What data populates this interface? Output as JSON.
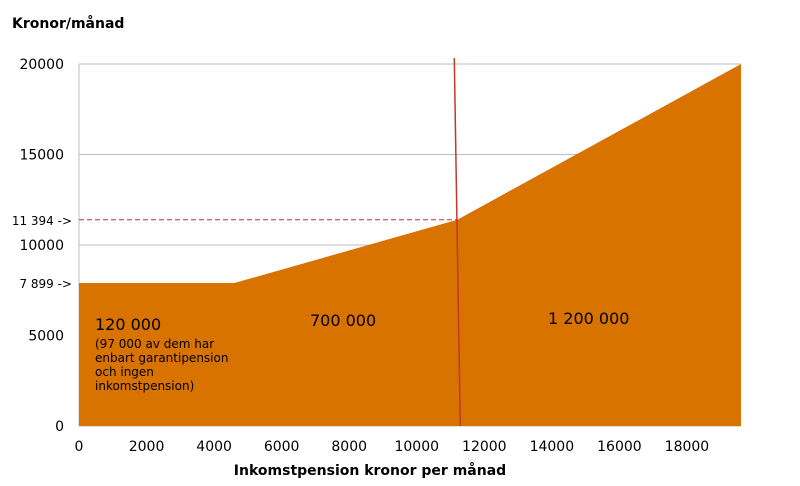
{
  "chart_data": {
    "type": "area",
    "ylabel": "Kronor/månad",
    "xlabel": "Inkomstpension kronor per månad",
    "xlim": [
      0,
      19600
    ],
    "ylim": [
      0,
      20000
    ],
    "x_ticks": [
      0,
      2000,
      4000,
      6000,
      8000,
      10000,
      12000,
      14000,
      16000,
      18000
    ],
    "y_ticks": [
      0,
      5000,
      10000,
      15000,
      20000
    ],
    "grid": true,
    "color": "#d87300",
    "series": [
      {
        "x": [
          0,
          4600,
          11200,
          19600
        ],
        "y": [
          7899,
          7899,
          11394,
          20000
        ]
      }
    ],
    "markers": [
      {
        "label": "7 899 ->",
        "y": 7899
      },
      {
        "label": "11 394 ->",
        "y": 11394,
        "x": 11200
      }
    ],
    "divider": {
      "x": 11200,
      "color": "#c0392b"
    },
    "regions": [
      {
        "label": "120 000",
        "note": [
          "(97 000 av dem har",
          "enbart garantipension",
          "och ingen",
          "inkomstpension)"
        ]
      },
      {
        "label": "700 000"
      },
      {
        "label": "1 200 000"
      }
    ]
  }
}
